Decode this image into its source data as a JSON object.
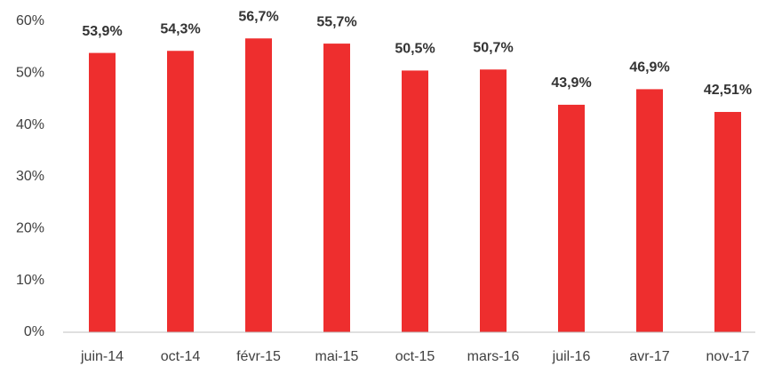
{
  "chart_data": {
    "type": "bar",
    "categories": [
      "juin-14",
      "oct-14",
      "févr-15",
      "mai-15",
      "oct-15",
      "mars-16",
      "juil-16",
      "avr-17",
      "nov-17"
    ],
    "values": [
      53.9,
      54.3,
      56.7,
      55.7,
      50.5,
      50.7,
      43.9,
      46.9,
      42.51
    ],
    "value_labels": [
      "53,9%",
      "54,3%",
      "56,7%",
      "55,7%",
      "50,5%",
      "50,7%",
      "43,9%",
      "46,9%",
      "42,51%"
    ],
    "color": "#ee2e2e",
    "ylim": [
      0,
      60
    ],
    "yticks": [
      {
        "value": 0,
        "label": "0%"
      },
      {
        "value": 10,
        "label": "10%"
      },
      {
        "value": 20,
        "label": "20%"
      },
      {
        "value": 30,
        "label": "30%"
      },
      {
        "value": 40,
        "label": "40%"
      },
      {
        "value": 50,
        "label": "50%"
      },
      {
        "value": 60,
        "label": "60%"
      }
    ],
    "grid": false
  }
}
